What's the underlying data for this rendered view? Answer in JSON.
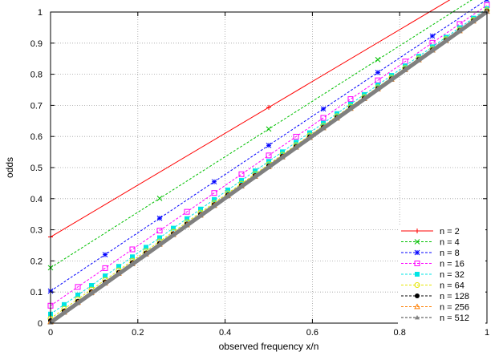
{
  "chart_data": {
    "type": "line",
    "title": "",
    "xlabel": "observed frequency x/n",
    "ylabel": "odds",
    "xlim": [
      0,
      1
    ],
    "ylim": [
      0,
      1
    ],
    "xticks": [
      0,
      0.2,
      0.4,
      0.6,
      0.8,
      1
    ],
    "xtick_labels": [
      "0",
      "0.2",
      "0.4",
      "0.6",
      "0.8",
      "1"
    ],
    "yticks": [
      0,
      0.1,
      0.2,
      0.3,
      0.4,
      0.5,
      0.6,
      0.7,
      0.8,
      0.9,
      1
    ],
    "ytick_labels": [
      "0",
      "0.1",
      "0.2",
      "0.3",
      "0.4",
      "0.5",
      "0.6",
      "0.7",
      "0.8",
      "0.9",
      "1"
    ],
    "grid": true,
    "legend_position": "bottom-right",
    "series": [
      {
        "name": "n = 2",
        "n": 2,
        "color": "#ff0000",
        "marker": "plus",
        "a": 0.277,
        "b": 0.833
      },
      {
        "name": "n = 4",
        "n": 4,
        "color": "#00c000",
        "marker": "cross",
        "a": 0.178,
        "b": 0.892
      },
      {
        "name": "n = 8",
        "n": 8,
        "color": "#0000ff",
        "marker": "star",
        "a": 0.103,
        "b": 0.937
      },
      {
        "name": "n = 16",
        "n": 16,
        "color": "#ff00ff",
        "marker": "open-square",
        "a": 0.056,
        "b": 0.966
      },
      {
        "name": "n = 32",
        "n": 32,
        "color": "#00e5e5",
        "marker": "filled-square",
        "a": 0.029,
        "b": 0.982
      },
      {
        "name": "n = 64",
        "n": 64,
        "color": "#e5e500",
        "marker": "open-circle",
        "a": 0.015,
        "b": 0.991
      },
      {
        "name": "n = 128",
        "n": 128,
        "color": "#000000",
        "marker": "filled-circle",
        "a": 0.008,
        "b": 0.995
      },
      {
        "name": "n = 256",
        "n": 256,
        "color": "#ff7f00",
        "marker": "open-triangle",
        "a": 0.004,
        "b": 0.998
      },
      {
        "name": "n = 512",
        "n": 512,
        "color": "#808080",
        "marker": "filled-triangle",
        "a": 0.002,
        "b": 0.999
      }
    ]
  }
}
